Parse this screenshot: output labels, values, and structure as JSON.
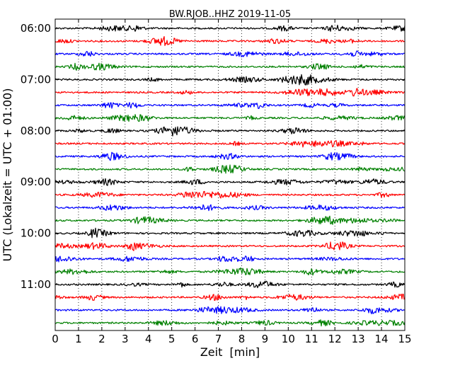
{
  "chart_data": {
    "type": "line",
    "title": "BW.RJOB..HHZ 2019-11-05",
    "xlabel": "Zeit  [min]",
    "ylabel": "UTC (Lokalzeit = UTC + 01:00)",
    "xlim": [
      0,
      15
    ],
    "x_ticks": [
      "0",
      "1",
      "2",
      "3",
      "4",
      "5",
      "6",
      "7",
      "8",
      "9",
      "10",
      "11",
      "12",
      "13",
      "14",
      "15"
    ],
    "y_ticks": [
      "06:00",
      "07:00",
      "08:00",
      "09:00",
      "10:00",
      "11:00"
    ],
    "grid": {
      "vertical_dotted": true
    },
    "row_interval_min": 15,
    "start_time": "06:00",
    "row_count": 24,
    "colors": [
      "#000000",
      "#ff0000",
      "#0000ff",
      "#008000"
    ]
  }
}
